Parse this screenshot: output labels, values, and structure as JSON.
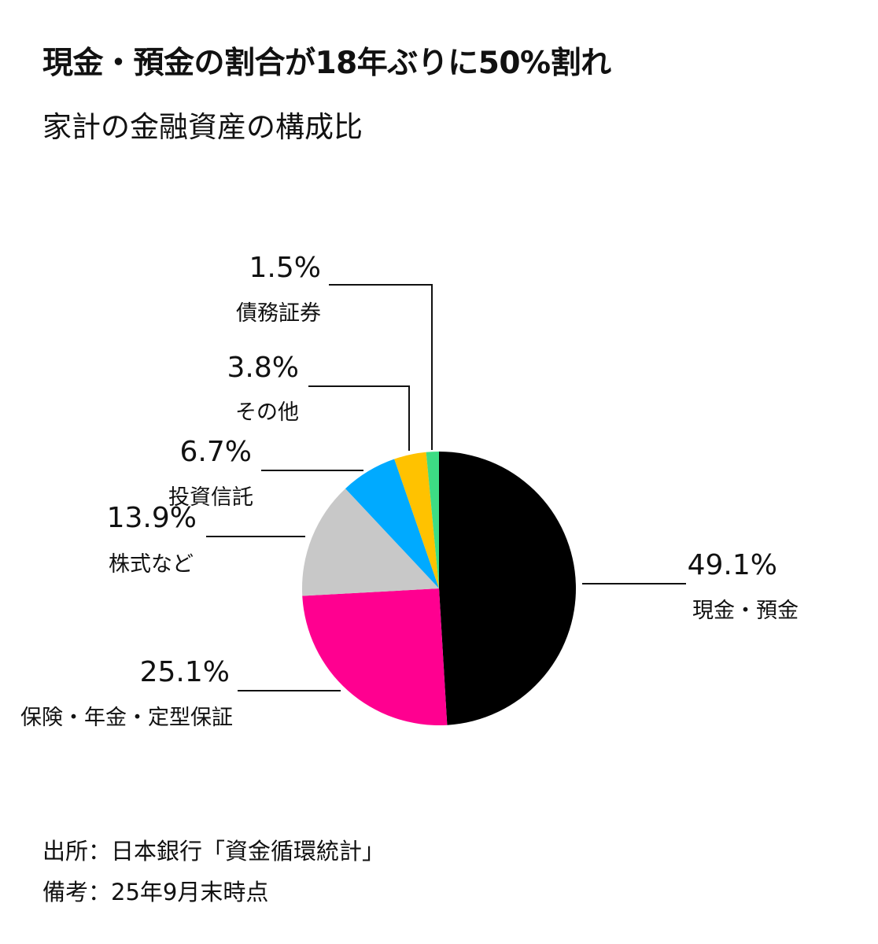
{
  "header": {
    "title": "現金・預金の割合が18年ぶりに50%割れ",
    "subtitle": "家計の金融資産の構成比"
  },
  "chart_data": {
    "type": "pie",
    "title": "現金・預金の割合が18年ぶりに50%割れ",
    "subtitle": "家計の金融資産の構成比",
    "slices": [
      {
        "label": "現金・預金",
        "value": 49.1,
        "value_label": "49.1%",
        "color": "#000000"
      },
      {
        "label": "保険・年金・定型保証",
        "value": 25.1,
        "value_label": "25.1%",
        "color": "#ff0090"
      },
      {
        "label": "株式など",
        "value": 13.9,
        "value_label": "13.9%",
        "color": "#c8c8c8"
      },
      {
        "label": "投資信託",
        "value": 6.7,
        "value_label": "6.7%",
        "color": "#00aaff"
      },
      {
        "label": "その他",
        "value": 3.8,
        "value_label": "3.8%",
        "color": "#ffc200"
      },
      {
        "label": "債務証券",
        "value": 1.5,
        "value_label": "1.5%",
        "color": "#3ddc84"
      }
    ],
    "start_angle": "12 o'clock",
    "direction": "clockwise",
    "legend": "none (callout labels)"
  },
  "footer": {
    "source": "出所：日本銀行「資金循環統計」",
    "note": "備考：25年9月末時点"
  }
}
